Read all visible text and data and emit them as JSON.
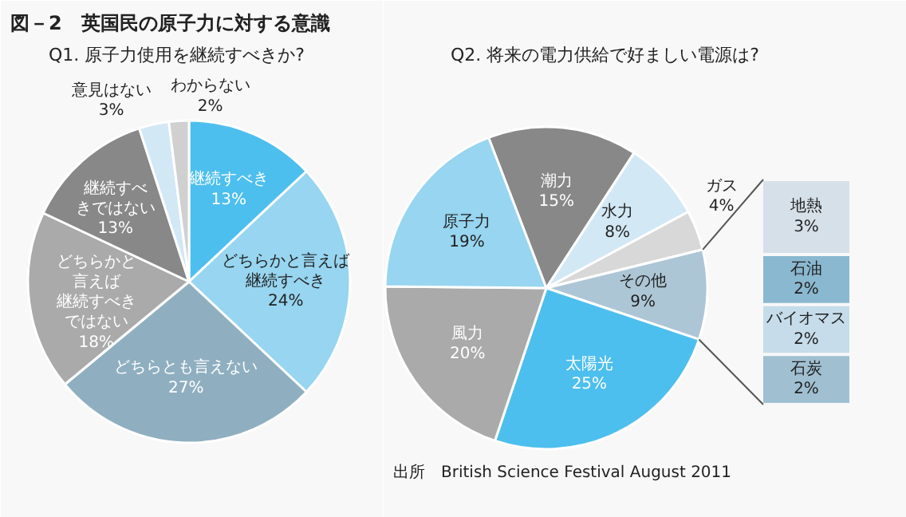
{
  "chart_data": [
    {
      "type": "pie",
      "title": "図－2　英国民の原子力に対する意識",
      "subtitle": "Q1.  原子力使用を継続すべきか?",
      "categories": [
        "継続すべき",
        "どちらかと言えば継続すべき",
        "どちらとも言えない",
        "どちらかと言えば継続すべきではない",
        "継続すべきではない",
        "意見はない",
        "わからない"
      ],
      "values": [
        13,
        24,
        27,
        18,
        13,
        3,
        2
      ],
      "value_labels": [
        "13%",
        "24%",
        "27%",
        "18%",
        "13%",
        "3%",
        "2%"
      ],
      "colors": [
        "#4dbfee",
        "#97d5f0",
        "#8fafc0",
        "#aaaaaa",
        "#888888",
        "#d3e8f5",
        "#d0d0d0"
      ]
    },
    {
      "type": "pie",
      "title": "Q2.  将来の電力供給で好ましい電源は?",
      "categories": [
        "潮力",
        "水力",
        "ガス",
        "その他",
        "太陽光",
        "風力",
        "原子力"
      ],
      "values": [
        15,
        8,
        4,
        9,
        25,
        20,
        19
      ],
      "value_labels": [
        "15%",
        "8%",
        "4%",
        "9%",
        "25%",
        "20%",
        "19%"
      ],
      "colors": [
        "#888888",
        "#d3e8f5",
        "#d8d8d8",
        "#adc6d6",
        "#4dbfee",
        "#aaaaaa",
        "#97d5f0"
      ],
      "annotations": [
        "出所　British Science Festival August 2011"
      ]
    },
    {
      "type": "other",
      "categories": [
        "地熱",
        "石油",
        "バイオマス",
        "石炭"
      ],
      "values": [
        3,
        2,
        2,
        2
      ],
      "value_labels": [
        "3%",
        "2%",
        "2%",
        "2%"
      ],
      "colors": [
        "#d6e0e8",
        "#8ab8d0",
        "#c6dcea",
        "#a0c0d2"
      ]
    }
  ]
}
